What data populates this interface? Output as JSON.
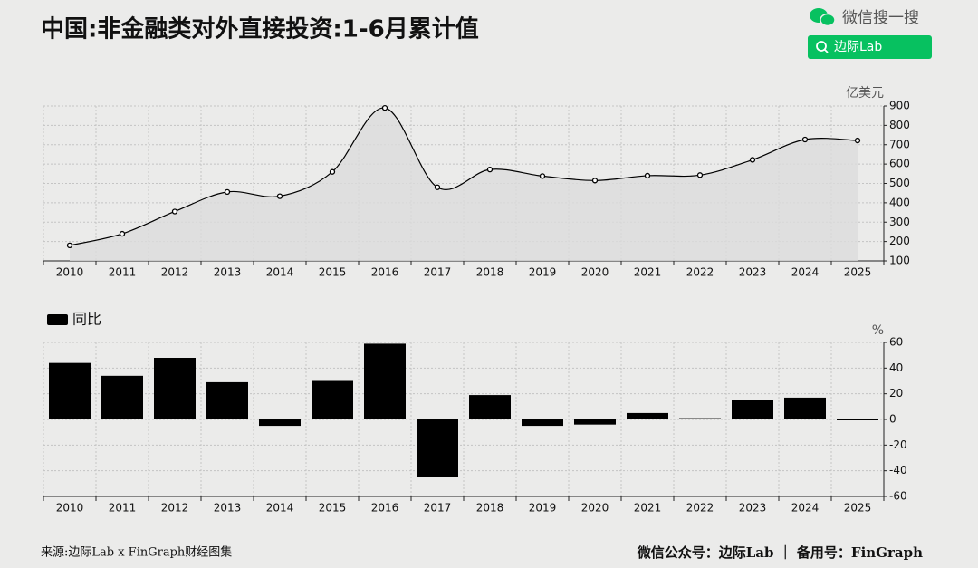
{
  "header": {
    "title": "中国:非金融类对外直接投资:1-6月累计值",
    "search_label": "微信搜一搜",
    "search_button": "边际Lab"
  },
  "footer": {
    "source": "来源:边际Lab x FinGraph财经图集",
    "credit": "微信公众号：边际Lab ｜ 备用号：FinGraph"
  },
  "chart_data": [
    {
      "type": "area",
      "y_label": "亿美元",
      "categories": [
        "2010",
        "2011",
        "2012",
        "2013",
        "2014",
        "2015",
        "2016",
        "2017",
        "2018",
        "2019",
        "2020",
        "2021",
        "2022",
        "2023",
        "2024",
        "2025"
      ],
      "values": [
        180,
        240,
        355,
        456,
        434,
        560,
        890,
        480,
        572,
        538,
        515,
        540,
        543,
        622,
        727,
        722
      ],
      "color": "#000000",
      "fill": "#dcdcdc",
      "ylim": [
        100,
        900
      ],
      "yticks": [
        100,
        200,
        300,
        400,
        500,
        600,
        700,
        800,
        900
      ],
      "grid": true
    },
    {
      "type": "bar",
      "y_label": "%",
      "legend": "同比",
      "categories": [
        "2010",
        "2011",
        "2012",
        "2013",
        "2014",
        "2015",
        "2016",
        "2017",
        "2018",
        "2019",
        "2020",
        "2021",
        "2022",
        "2023",
        "2024",
        "2025"
      ],
      "values": [
        44,
        34,
        48,
        29,
        -5,
        30,
        59,
        -45,
        19,
        -5,
        -4,
        5,
        1,
        15,
        17,
        -0.5
      ],
      "color": "#000000",
      "ylim": [
        -60,
        60
      ],
      "yticks": [
        -60,
        -40,
        -20,
        0,
        20,
        40,
        60
      ],
      "grid": true
    }
  ]
}
